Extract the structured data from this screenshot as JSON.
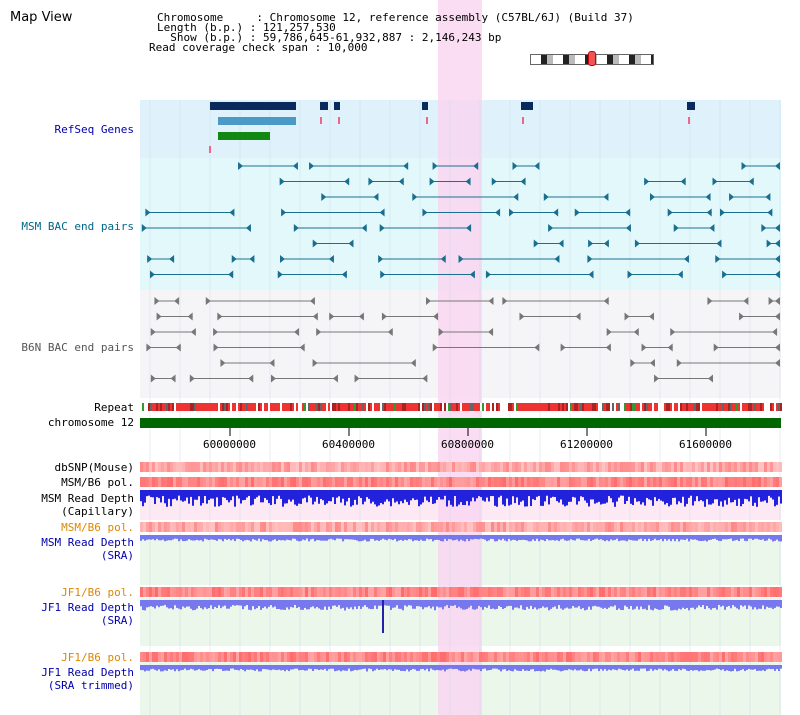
{
  "view_title": "Map View",
  "info": {
    "chromosome": "Chromosome     : Chromosome 12, reference assembly (C57BL/6J) (Build 37)",
    "length": "Length (b.p.) : 121,257,530",
    "show": "  Show (b.p.) : 59,786,645-61,932,887 : 2,146,243 bp",
    "read_span": "Read coverage check span : 10,000"
  },
  "tracks": {
    "refseq": "RefSeq Genes",
    "msm_bac": "MSM BAC end pairs",
    "b6n_bac": "B6N BAC end pairs",
    "repeat": "Repeat",
    "chromosome": "chromosome 12",
    "dbsnp": "dbSNP(Mouse)",
    "msm_b6_pol": "MSM/B6 pol.",
    "msm_read_depth_cap": "MSM Read Depth",
    "msm_read_depth_cap_sub": "(Capillary)",
    "msm_b6_pol2": "MSM/B6 pol.",
    "msm_read_depth_sra": "MSM Read Depth",
    "msm_read_depth_sra_sub": "(SRA)",
    "jf1_b6_pol": "JF1/B6 pol.",
    "jf1_read_depth": "JF1 Read Depth",
    "jf1_read_depth_sub": "(SRA)",
    "jf1_b6_pol2": "JF1/B6 pol.",
    "jf1_read_depth_trim": "JF1 Read Depth",
    "jf1_read_depth_trim_sub": "(SRA trimmed)"
  },
  "axis_ticks": [
    "60000000",
    "60400000",
    "60800000",
    "61200000",
    "61600000"
  ],
  "colors": {
    "refseq_bg": "#dff2fb",
    "bac_bg": "#e3f8fb",
    "highlight": "#f9d6f1",
    "chrom_bar": "#006600",
    "snp_red": "#ee3333",
    "depth_blue": "#2222dd",
    "depth_light": "#7777ee"
  }
}
